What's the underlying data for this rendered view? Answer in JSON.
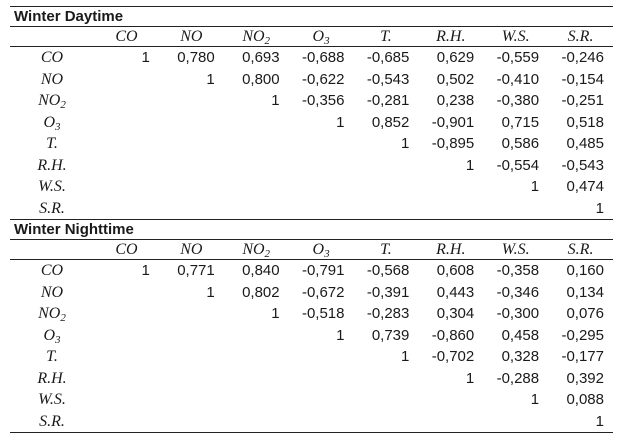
{
  "variables": [
    {
      "base": "CO",
      "sub": "",
      "italic": true
    },
    {
      "base": "NO",
      "sub": "",
      "italic": true
    },
    {
      "base": "NO",
      "sub": "2",
      "italic": true
    },
    {
      "base": "O",
      "sub": "3",
      "italic": true
    },
    {
      "base": "T.",
      "sub": "",
      "italic": true
    },
    {
      "base": "R.H.",
      "sub": "",
      "italic": true
    },
    {
      "base": "W.S.",
      "sub": "",
      "italic": true
    },
    {
      "base": "S.R.",
      "sub": "",
      "italic": true
    }
  ],
  "sections": [
    {
      "title": "Winter Daytime",
      "rows": [
        [
          "1",
          "0,780",
          "0,693",
          "-0,688",
          "-0,685",
          "0,629",
          "-0,559",
          "-0,246"
        ],
        [
          "",
          "1",
          "0,800",
          "-0,622",
          "-0,543",
          "0,502",
          "-0,410",
          "-0,154"
        ],
        [
          "",
          "",
          "1",
          "-0,356",
          "-0,281",
          "0,238",
          "-0,380",
          "-0,251"
        ],
        [
          "",
          "",
          "",
          "1",
          "0,852",
          "-0,901",
          "0,715",
          "0,518"
        ],
        [
          "",
          "",
          "",
          "",
          "1",
          "-0,895",
          "0,586",
          "0,485"
        ],
        [
          "",
          "",
          "",
          "",
          "",
          "1",
          "-0,554",
          "-0,543"
        ],
        [
          "",
          "",
          "",
          "",
          "",
          "",
          "1",
          "0,474"
        ],
        [
          "",
          "",
          "",
          "",
          "",
          "",
          "",
          "1"
        ]
      ]
    },
    {
      "title": "Winter Nighttime",
      "rows": [
        [
          "1",
          "0,771",
          "0,840",
          "-0,791",
          "-0,568",
          "0,608",
          "-0,358",
          "0,160"
        ],
        [
          "",
          "1",
          "0,802",
          "-0,672",
          "-0,391",
          "0,443",
          "-0,346",
          "0,134"
        ],
        [
          "",
          "",
          "1",
          "-0,518",
          "-0,283",
          "0,304",
          "-0,300",
          "0,076"
        ],
        [
          "",
          "",
          "",
          "1",
          "0,739",
          "-0,860",
          "0,458",
          "-0,295"
        ],
        [
          "",
          "",
          "",
          "",
          "1",
          "-0,702",
          "0,328",
          "-0,177"
        ],
        [
          "",
          "",
          "",
          "",
          "",
          "1",
          "-0,288",
          "0,392"
        ],
        [
          "",
          "",
          "",
          "",
          "",
          "",
          "1",
          "0,088"
        ],
        [
          "",
          "",
          "",
          "",
          "",
          "",
          "",
          "1"
        ]
      ]
    }
  ]
}
